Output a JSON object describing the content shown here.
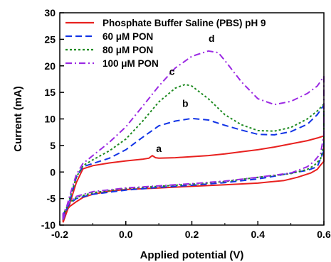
{
  "chart_data": {
    "type": "line",
    "title": "",
    "xlabel": "Applied potential (V)",
    "ylabel": "Current (mA)",
    "xlim": [
      -0.2,
      0.6
    ],
    "ylim": [
      -10,
      30
    ],
    "x_ticks": [
      "-0.2",
      "0.0",
      "0.2",
      "0.4",
      "0.6"
    ],
    "x_tick_values": [
      -0.2,
      0.0,
      0.2,
      0.4,
      0.6
    ],
    "y_ticks": [
      "-10",
      "-5",
      "0",
      "5",
      "10",
      "15",
      "20",
      "25",
      "30"
    ],
    "y_tick_values": [
      -10,
      -5,
      0,
      5,
      10,
      15,
      20,
      25,
      30
    ],
    "grid": false,
    "legend_position": "top-left",
    "series": [
      {
        "name": "Phosphate Buffer Saline (PBS) pH 9",
        "color": "#e8211f",
        "dash": "solid",
        "label": "a",
        "label_at": [
          0.1,
          3.8
        ],
        "x": [
          -0.19,
          -0.17,
          -0.15,
          -0.13,
          -0.1,
          -0.05,
          0.0,
          0.05,
          0.07,
          0.08,
          0.09,
          0.1,
          0.15,
          0.2,
          0.25,
          0.3,
          0.35,
          0.4,
          0.45,
          0.5,
          0.55,
          0.58,
          0.6,
          0.6,
          0.6,
          0.59,
          0.58,
          0.56,
          0.52,
          0.48,
          0.4,
          0.3,
          0.2,
          0.1,
          0.0,
          -0.05,
          -0.1,
          -0.13,
          -0.15,
          -0.17,
          -0.18,
          -0.19,
          -0.19
        ],
        "y": [
          -9.5,
          -6.0,
          -2.0,
          0.6,
          1.2,
          1.7,
          2.1,
          2.4,
          2.6,
          3.1,
          2.7,
          2.6,
          2.7,
          2.9,
          3.1,
          3.4,
          3.8,
          4.2,
          4.7,
          5.3,
          5.9,
          6.4,
          6.8,
          5.5,
          2.0,
          1.3,
          0.5,
          -0.2,
          -1.0,
          -1.6,
          -2.1,
          -2.4,
          -2.7,
          -3.0,
          -3.3,
          -3.6,
          -4.2,
          -4.8,
          -5.6,
          -6.5,
          -7.3,
          -8.5,
          -9.5
        ]
      },
      {
        "name": "60 μM PON",
        "color": "#1234e6",
        "dash": "dashed",
        "label": "b",
        "label_at": [
          0.18,
          12.3
        ],
        "x": [
          -0.19,
          -0.17,
          -0.15,
          -0.13,
          -0.1,
          -0.05,
          0.0,
          0.05,
          0.1,
          0.15,
          0.2,
          0.25,
          0.3,
          0.35,
          0.4,
          0.45,
          0.5,
          0.55,
          0.58,
          0.6,
          0.6,
          0.6,
          0.59,
          0.58,
          0.55,
          0.5,
          0.45,
          0.4,
          0.3,
          0.2,
          0.1,
          0.0,
          -0.1,
          -0.15,
          -0.17,
          -0.18,
          -0.19,
          -0.19
        ],
        "y": [
          -9.0,
          -5.5,
          -1.0,
          1.0,
          1.6,
          2.6,
          4.2,
          6.5,
          8.7,
          9.6,
          10.1,
          9.8,
          8.8,
          7.9,
          7.1,
          7.0,
          7.6,
          9.0,
          10.8,
          12.6,
          10.0,
          4.0,
          2.5,
          1.0,
          0.3,
          -0.2,
          -0.8,
          -1.3,
          -2.0,
          -2.5,
          -2.9,
          -3.4,
          -4.2,
          -5.0,
          -6.0,
          -7.0,
          -8.0,
          -9.0
        ]
      },
      {
        "name": "80 μM PON",
        "color": "#1d8a20",
        "dash": "dotted",
        "label": "c",
        "label_at": [
          0.14,
          18.3
        ],
        "x": [
          -0.19,
          -0.17,
          -0.15,
          -0.13,
          -0.1,
          -0.05,
          0.0,
          0.05,
          0.1,
          0.15,
          0.18,
          0.2,
          0.25,
          0.3,
          0.35,
          0.4,
          0.45,
          0.5,
          0.55,
          0.58,
          0.6,
          0.6,
          0.6,
          0.59,
          0.57,
          0.55,
          0.5,
          0.4,
          0.3,
          0.2,
          0.1,
          0.0,
          -0.1,
          -0.15,
          -0.17,
          -0.18,
          -0.19,
          -0.19
        ],
        "y": [
          -9.0,
          -5.0,
          -1.0,
          1.2,
          2.3,
          4.0,
          6.2,
          9.5,
          13.2,
          15.8,
          16.5,
          16.2,
          13.8,
          10.8,
          8.9,
          7.8,
          7.7,
          8.4,
          10.0,
          11.5,
          12.8,
          10.0,
          5.0,
          2.5,
          1.2,
          0.5,
          -0.3,
          -1.0,
          -1.8,
          -2.3,
          -2.7,
          -3.1,
          -3.9,
          -4.8,
          -5.8,
          -6.8,
          -8.0,
          -9.0
        ]
      },
      {
        "name": "100 μM PON",
        "color": "#9b29e3",
        "dash": "dashdot",
        "label": "d",
        "label_at": [
          0.26,
          24.5
        ],
        "x": [
          -0.19,
          -0.17,
          -0.15,
          -0.13,
          -0.1,
          -0.05,
          0.0,
          0.05,
          0.1,
          0.15,
          0.2,
          0.25,
          0.28,
          0.3,
          0.35,
          0.4,
          0.45,
          0.5,
          0.55,
          0.58,
          0.6,
          0.6,
          0.6,
          0.59,
          0.57,
          0.55,
          0.5,
          0.4,
          0.3,
          0.2,
          0.1,
          0.0,
          -0.1,
          -0.15,
          -0.17,
          -0.18,
          -0.19,
          -0.19
        ],
        "y": [
          -9.0,
          -4.5,
          -0.5,
          1.6,
          3.1,
          5.6,
          8.5,
          12.3,
          16.2,
          19.6,
          21.8,
          22.8,
          22.5,
          21.0,
          17.0,
          13.8,
          12.7,
          13.3,
          14.8,
          16.2,
          18.0,
          14.0,
          7.0,
          3.5,
          2.0,
          1.0,
          -0.2,
          -1.0,
          -1.7,
          -2.2,
          -2.6,
          -3.0,
          -3.7,
          -4.6,
          -5.6,
          -6.7,
          -7.8,
          -9.0
        ]
      }
    ]
  }
}
